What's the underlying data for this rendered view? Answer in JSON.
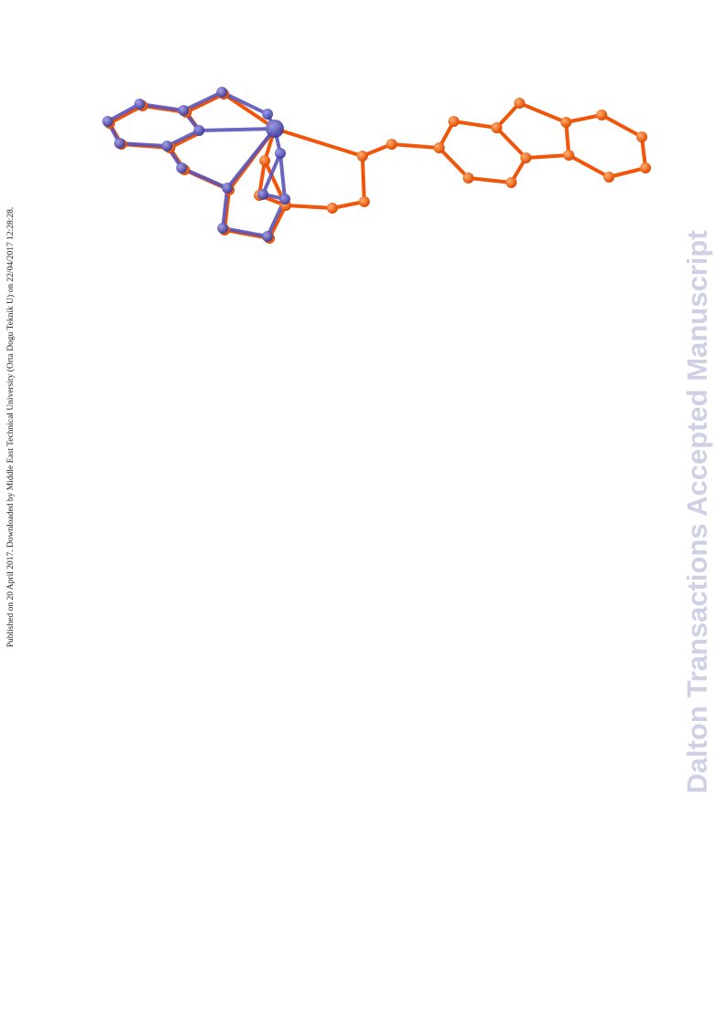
{
  "side_note": "Published on 20 April 2017. Downloaded by Middle East Technical University (Orta Dogu Teknik U) on 22/04/2017 12:28:28.",
  "watermark": "Dalton Transactions Accepted Manuscript"
}
